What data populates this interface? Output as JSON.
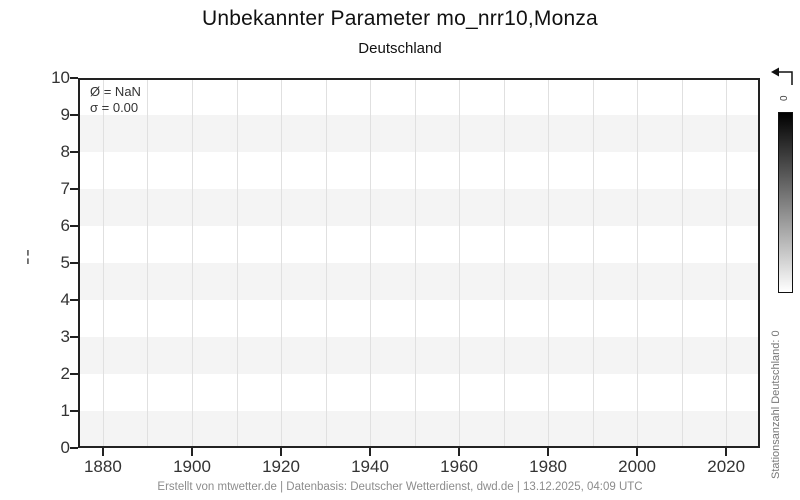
{
  "header": {
    "title": "Unbekannter Parameter mo_nrr10,Monza",
    "subtitle": "Deutschland"
  },
  "annotation": {
    "line1": "Ø = NaN",
    "line2": "σ = 0.00"
  },
  "y_axis_fragment": "¦",
  "colorbar": {
    "top_tick_label": "0",
    "label": "Stationsanzahl Deutschland: 0",
    "gradient_top": "#000000",
    "gradient_bottom": "#ffffff"
  },
  "footer": {
    "text": "Erstellt von mtwetter.de | Datenbasis: Deutscher Wetterdienst, dwd.de | 13.12.2025, 04:09 UTC"
  },
  "chart_data": {
    "type": "line",
    "title": "Unbekannter Parameter mo_nrr10,Monza",
    "subtitle": "Deutschland",
    "series": [],
    "x_axis": {
      "ticks": [
        1880,
        1900,
        1920,
        1940,
        1960,
        1980,
        2000,
        2020
      ],
      "minor_step": 10,
      "range": [
        1874.4,
        2027.6
      ]
    },
    "y_axis": {
      "ticks": [
        0,
        1,
        2,
        3,
        4,
        5,
        6,
        7,
        8,
        9,
        10
      ],
      "range": [
        0,
        10
      ]
    },
    "grid": true,
    "legend_position": "right-colorbar",
    "band_fill_values": [
      [
        0,
        1
      ],
      [
        2,
        3
      ],
      [
        4,
        5
      ],
      [
        6,
        7
      ],
      [
        8,
        9
      ]
    ],
    "colors": {
      "band": "#f4f4f4",
      "gridline": "#e0e0e0",
      "axis": "#222222",
      "tick_label": "#333333",
      "footer_text": "#8c8c8c",
      "colorbar_label": "#777777"
    }
  }
}
